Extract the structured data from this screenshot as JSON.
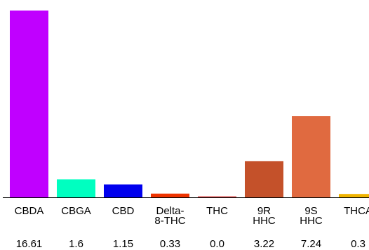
{
  "chart_data": {
    "type": "bar",
    "categories": [
      "CBDA",
      "CBGA",
      "CBD",
      "Delta-\n8-THC",
      "THC",
      "9R\nHHC",
      "9S\nHHC",
      "THCA"
    ],
    "values": [
      16.61,
      1.6,
      1.15,
      0.33,
      0.0,
      3.22,
      7.24,
      0.3
    ],
    "value_labels": [
      "16.61",
      "1.6",
      "1.15",
      "0.33",
      "0.0",
      "3.22",
      "7.24",
      "0.3"
    ],
    "colors": [
      "#c000ff",
      "#00ffc0",
      "#0000ee",
      "#ee3300",
      "#dd5555",
      "#c4512a",
      "#e06a40",
      "#f0b400"
    ],
    "ylim": [
      0,
      16.61
    ],
    "grid": false,
    "legend": "none"
  }
}
